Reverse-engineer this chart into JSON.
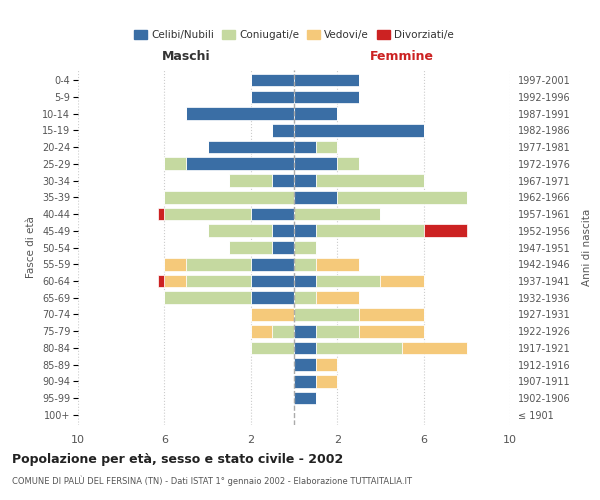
{
  "age_groups": [
    "100+",
    "95-99",
    "90-94",
    "85-89",
    "80-84",
    "75-79",
    "70-74",
    "65-69",
    "60-64",
    "55-59",
    "50-54",
    "45-49",
    "40-44",
    "35-39",
    "30-34",
    "25-29",
    "20-24",
    "15-19",
    "10-14",
    "5-9",
    "0-4"
  ],
  "birth_years": [
    "≤ 1901",
    "1902-1906",
    "1907-1911",
    "1912-1916",
    "1917-1921",
    "1922-1926",
    "1927-1931",
    "1932-1936",
    "1937-1941",
    "1942-1946",
    "1947-1951",
    "1952-1956",
    "1957-1961",
    "1962-1966",
    "1967-1971",
    "1972-1976",
    "1977-1981",
    "1982-1986",
    "1987-1991",
    "1992-1996",
    "1997-2001"
  ],
  "males": {
    "celibi": [
      0,
      0,
      0,
      0,
      0,
      0,
      0,
      2,
      2,
      2,
      1,
      1,
      2,
      0,
      1,
      5,
      4,
      1,
      5,
      2,
      2
    ],
    "coniugati": [
      0,
      0,
      0,
      0,
      2,
      1,
      0,
      4,
      3,
      3,
      2,
      3,
      4,
      6,
      2,
      1,
      0,
      0,
      0,
      0,
      0
    ],
    "vedovi": [
      0,
      0,
      0,
      0,
      0,
      1,
      2,
      0,
      1,
      1,
      0,
      0,
      0,
      0,
      0,
      0,
      0,
      0,
      0,
      0,
      0
    ],
    "divorziati": [
      0,
      0,
      0,
      0,
      0,
      0,
      0,
      0,
      0.3,
      0,
      0,
      0,
      0.3,
      0,
      0,
      0,
      0,
      0,
      0,
      0,
      0
    ]
  },
  "females": {
    "nubili": [
      0,
      1,
      1,
      1,
      1,
      1,
      0,
      0,
      1,
      0,
      0,
      1,
      0,
      2,
      1,
      2,
      1,
      6,
      2,
      3,
      3
    ],
    "coniugate": [
      0,
      0,
      0,
      0,
      4,
      2,
      3,
      1,
      3,
      1,
      1,
      5,
      4,
      6,
      5,
      1,
      1,
      0,
      0,
      0,
      0
    ],
    "vedove": [
      0,
      0,
      1,
      1,
      3,
      3,
      3,
      2,
      2,
      2,
      0,
      0,
      0,
      0,
      0,
      0,
      0,
      0,
      0,
      0,
      0
    ],
    "divorziate": [
      0,
      0,
      0,
      0,
      0,
      0,
      0,
      0,
      0,
      0,
      0,
      2,
      0,
      0,
      0,
      0,
      0,
      0,
      0,
      0,
      0
    ]
  },
  "colors": {
    "celibi": "#3a6ea5",
    "coniugati": "#c5d9a0",
    "vedovi": "#f5c97a",
    "divorziati": "#cc2222"
  },
  "title": "Popolazione per età, sesso e stato civile - 2002",
  "subtitle": "COMUNE DI PALÙ DEL FERSINA (TN) - Dati ISTAT 1° gennaio 2002 - Elaborazione TUTTAITALIA.IT",
  "xlim": 10,
  "bg_color": "#ffffff",
  "grid_color": "#cccccc"
}
